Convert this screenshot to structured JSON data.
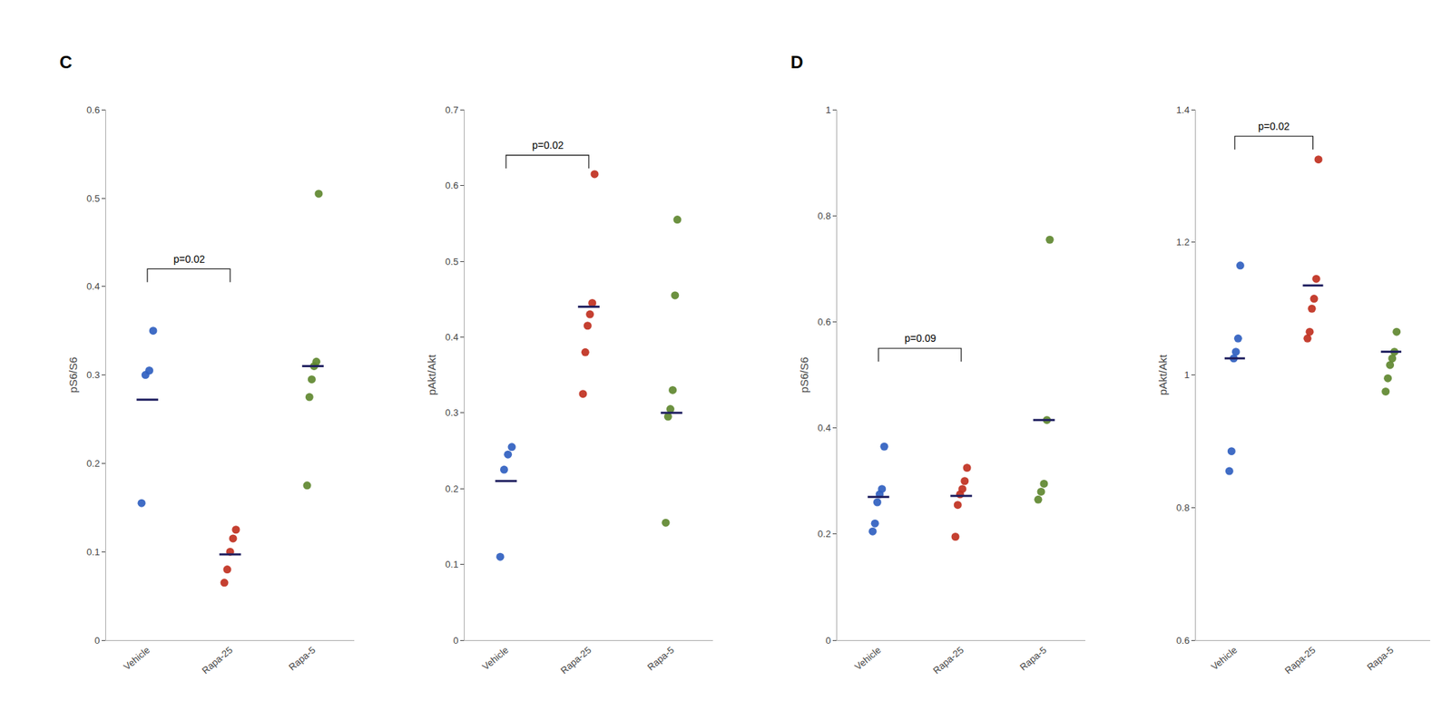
{
  "chart_data": [
    {
      "type": "strip",
      "title": "C",
      "categories": [
        "Vehicle",
        "Rapa-25",
        "Rapa-5"
      ],
      "ylabel": "pS6/S6",
      "ylim": [
        0,
        0.6
      ],
      "yticks": [
        0,
        0.1,
        0.2,
        0.3,
        0.4,
        0.5,
        0.6
      ],
      "grid": false,
      "series": [
        {
          "type": "scatter",
          "colors": [
            "#3060c0",
            "#c03020",
            "#608830"
          ],
          "values": [
            [
              0.155,
              0.3,
              0.305,
              0.35
            ],
            [
              0.065,
              0.08,
              0.1,
              0.115,
              0.125
            ],
            [
              0.175,
              0.275,
              0.295,
              0.31,
              0.315,
              0.505
            ]
          ]
        },
        {
          "type": "mean",
          "color": "#202060",
          "values": [
            0.272,
            0.097,
            0.31
          ]
        }
      ],
      "annotations": [
        {
          "text": "p=0.02",
          "from": "Vehicle",
          "to": "Rapa-25",
          "y": 0.42
        }
      ]
    },
    {
      "type": "strip",
      "categories": [
        "Vehicle",
        "Rapa-25",
        "Rapa-5"
      ],
      "ylabel": "pAkt/Akt",
      "ylim": [
        0,
        0.7
      ],
      "yticks": [
        0,
        0.1,
        0.2,
        0.3,
        0.4,
        0.5,
        0.6,
        0.7
      ],
      "grid": false,
      "series": [
        {
          "type": "scatter",
          "colors": [
            "#3060c0",
            "#c03020",
            "#608830"
          ],
          "values": [
            [
              0.11,
              0.225,
              0.245,
              0.255
            ],
            [
              0.325,
              0.38,
              0.415,
              0.43,
              0.445,
              0.615
            ],
            [
              0.155,
              0.295,
              0.305,
              0.33,
              0.455,
              0.555
            ]
          ]
        },
        {
          "type": "mean",
          "color": "#202060",
          "values": [
            0.21,
            0.44,
            0.3
          ]
        }
      ],
      "annotations": [
        {
          "text": "p=0.02",
          "from": "Vehicle",
          "to": "Rapa-25",
          "y": 0.64
        }
      ]
    },
    {
      "type": "strip",
      "title": "D",
      "categories": [
        "Vehicle",
        "Rapa-25",
        "Rapa-5"
      ],
      "ylabel": "pS6/S6",
      "ylim": [
        0,
        1.0
      ],
      "yticks": [
        0,
        0.2,
        0.4,
        0.6,
        0.8,
        1.0
      ],
      "grid": false,
      "series": [
        {
          "type": "scatter",
          "colors": [
            "#3060c0",
            "#c03020",
            "#608830"
          ],
          "values": [
            [
              0.205,
              0.22,
              0.26,
              0.275,
              0.285,
              0.365
            ],
            [
              0.195,
              0.255,
              0.275,
              0.285,
              0.3,
              0.325
            ],
            [
              0.265,
              0.28,
              0.295,
              0.415,
              0.755
            ]
          ]
        },
        {
          "type": "mean",
          "color": "#202060",
          "values": [
            0.27,
            0.272,
            0.415
          ]
        }
      ],
      "annotations": [
        {
          "text": "p=0.09",
          "from": "Vehicle",
          "to": "Rapa-25",
          "y": 0.55
        }
      ]
    },
    {
      "type": "strip",
      "categories": [
        "Vehicle",
        "Rapa-25",
        "Rapa-5"
      ],
      "ylabel": "pAkt/Akt",
      "ylim": [
        0.6,
        1.4
      ],
      "yticks": [
        0.6,
        0.8,
        1.0,
        1.2,
        1.4
      ],
      "grid": false,
      "series": [
        {
          "type": "scatter",
          "colors": [
            "#3060c0",
            "#c03020",
            "#608830"
          ],
          "values": [
            [
              0.855,
              0.885,
              1.025,
              1.035,
              1.055,
              1.165
            ],
            [
              1.055,
              1.065,
              1.1,
              1.115,
              1.145,
              1.325
            ],
            [
              0.975,
              0.995,
              1.015,
              1.025,
              1.035,
              1.065
            ]
          ]
        },
        {
          "type": "mean",
          "color": "#202060",
          "values": [
            1.025,
            1.135,
            1.035
          ]
        }
      ],
      "annotations": [
        {
          "text": "p=0.02",
          "from": "Vehicle",
          "to": "Rapa-25",
          "y": 1.36
        }
      ]
    }
  ]
}
